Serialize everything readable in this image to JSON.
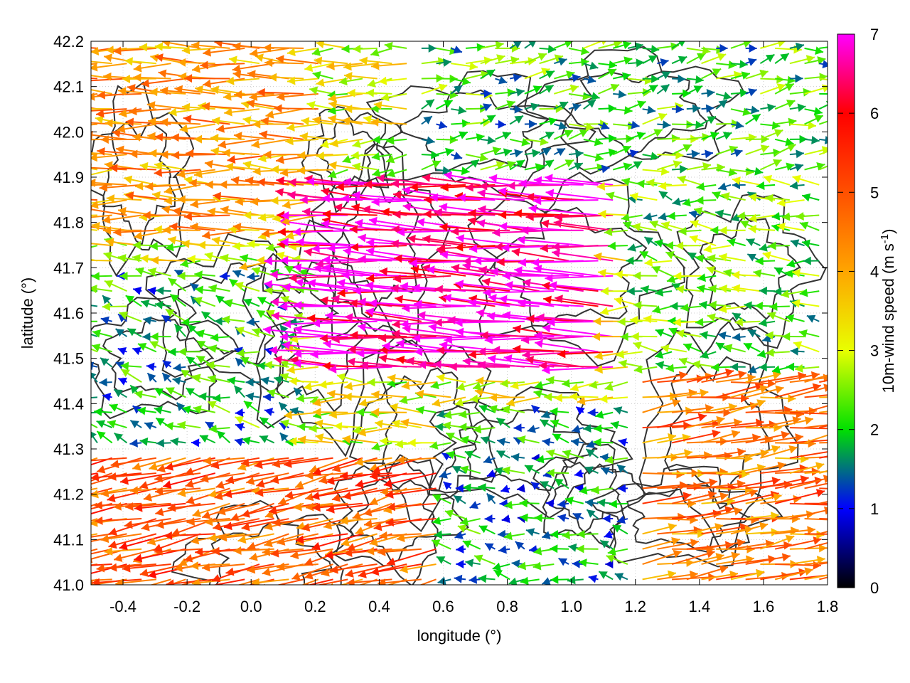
{
  "chart_data": {
    "type": "vector-field",
    "xlabel": "longitude (°)",
    "ylabel": "latitude (°)",
    "colorbar_label": "10m-wind speed (m s-1)",
    "colorbar_label_parts": {
      "prefix": "10m-wind speed (m s",
      "sup": "-1",
      "suffix": ")"
    },
    "xlim": [
      -0.5,
      1.8
    ],
    "ylim": [
      41.0,
      42.2
    ],
    "x_ticks": [
      "-0.4",
      "-0.2",
      "0.0",
      "0.2",
      "0.4",
      "0.6",
      "0.8",
      "1.0",
      "1.2",
      "1.4",
      "1.6",
      "1.8"
    ],
    "x_tick_values": [
      -0.4,
      -0.2,
      0.0,
      0.2,
      0.4,
      0.6,
      0.8,
      1.0,
      1.2,
      1.4,
      1.6,
      1.8
    ],
    "y_ticks": [
      "41.0",
      "41.1",
      "41.2",
      "41.3",
      "41.4",
      "41.5",
      "41.6",
      "41.7",
      "41.8",
      "41.9",
      "42.0",
      "42.1",
      "42.2"
    ],
    "y_tick_values": [
      41.0,
      41.1,
      41.2,
      41.3,
      41.4,
      41.5,
      41.6,
      41.7,
      41.8,
      41.9,
      42.0,
      42.1,
      42.2
    ],
    "colorbar": {
      "range": [
        0,
        7
      ],
      "ticks": [
        "0",
        "1",
        "2",
        "3",
        "4",
        "5",
        "6",
        "7"
      ],
      "tick_values": [
        0,
        1,
        2,
        3,
        4,
        5,
        6,
        7
      ],
      "stops": [
        {
          "v": 0,
          "color": "#000000"
        },
        {
          "v": 1,
          "color": "#0000ff"
        },
        {
          "v": 2,
          "color": "#00e000"
        },
        {
          "v": 3,
          "color": "#e8ff00"
        },
        {
          "v": 4,
          "color": "#ffa500"
        },
        {
          "v": 5,
          "color": "#ff5000"
        },
        {
          "v": 6,
          "color": "#ff0000"
        },
        {
          "v": 7,
          "color": "#ff00ff"
        }
      ]
    },
    "grid": "dotted",
    "wind_field": {
      "description_values": "u,v in m s-1 at sample points",
      "regions": [
        {
          "lon": [
            -0.5,
            0.25
          ],
          "lat": [
            41.75,
            42.2
          ],
          "u": -4.2,
          "v": 0.0
        },
        {
          "lon": [
            0.25,
            1.15
          ],
          "lat": [
            41.45,
            41.9
          ],
          "u": -6.8,
          "v": 0.4
        },
        {
          "lon": [
            -0.5,
            0.2
          ],
          "lat": [
            41.3,
            41.7
          ],
          "u": -1.8,
          "v": 0.6
        },
        {
          "lon": [
            -0.5,
            0.6
          ],
          "lat": [
            41.0,
            41.3
          ],
          "u": -4.8,
          "v": -1.0
        },
        {
          "lon": [
            0.6,
            1.2
          ],
          "lat": [
            41.0,
            41.4
          ],
          "u": -1.6,
          "v": 0.3
        },
        {
          "lon": [
            1.2,
            1.8
          ],
          "lat": [
            41.0,
            41.45
          ],
          "u": 4.5,
          "v": 0.6
        },
        {
          "lon": [
            1.2,
            1.8
          ],
          "lat": [
            41.45,
            41.9
          ],
          "u": -2.2,
          "v": 0.2
        },
        {
          "lon": [
            0.5,
            1.8
          ],
          "lat": [
            41.9,
            42.2
          ],
          "u": 2.0,
          "v": 0.3
        }
      ]
    },
    "topography_contours": "orography contour lines (dark grey)"
  }
}
